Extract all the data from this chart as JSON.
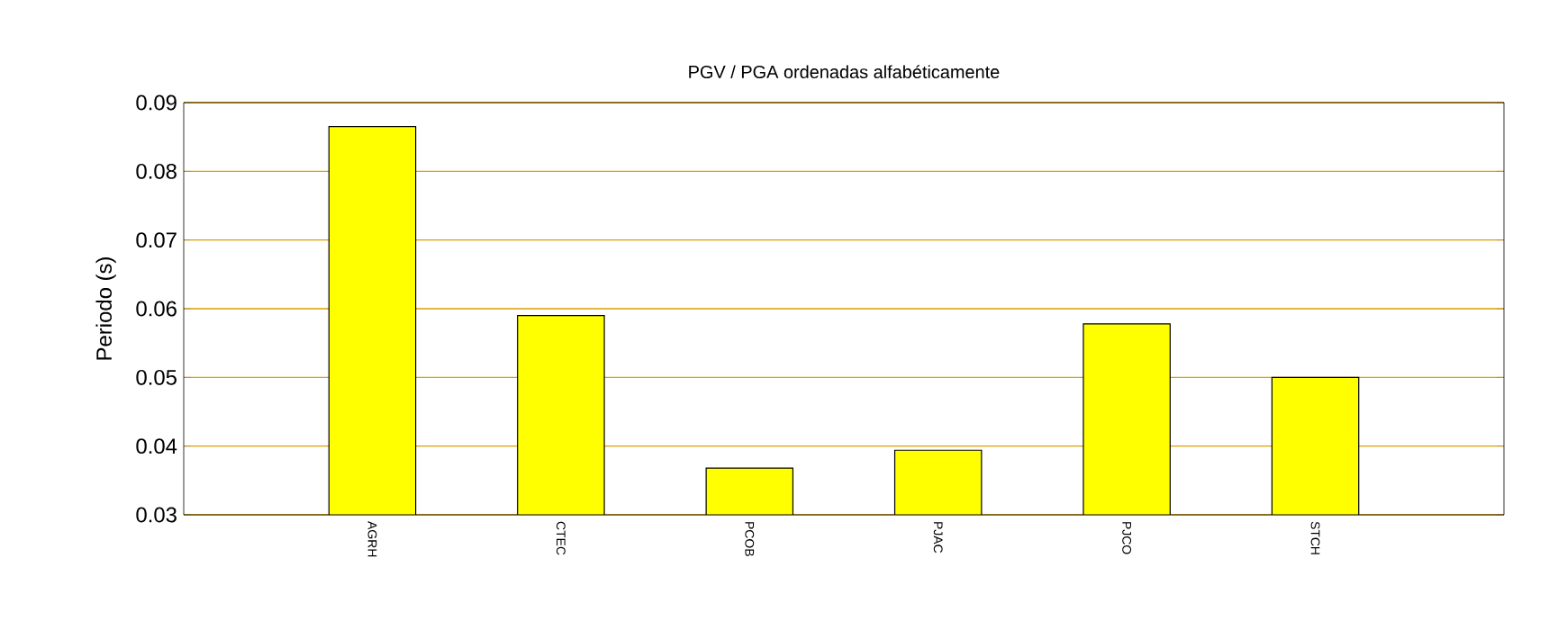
{
  "chart_data": {
    "type": "bar",
    "title": "PGV / PGA ordenadas alfabéticamente",
    "ylabel": "Periodo (s)",
    "categories": [
      "AGRH",
      "CTEC",
      "PCOB",
      "PJAC",
      "PJCO",
      "STCH"
    ],
    "values": [
      0.0865,
      0.059,
      0.0368,
      0.0394,
      0.0578,
      0.05
    ],
    "color": "#ffff00",
    "ylim": [
      0.03,
      0.09
    ],
    "yticks": [
      0.03,
      0.04,
      0.05,
      0.06,
      0.07,
      0.08,
      0.09
    ],
    "grid": "y"
  }
}
